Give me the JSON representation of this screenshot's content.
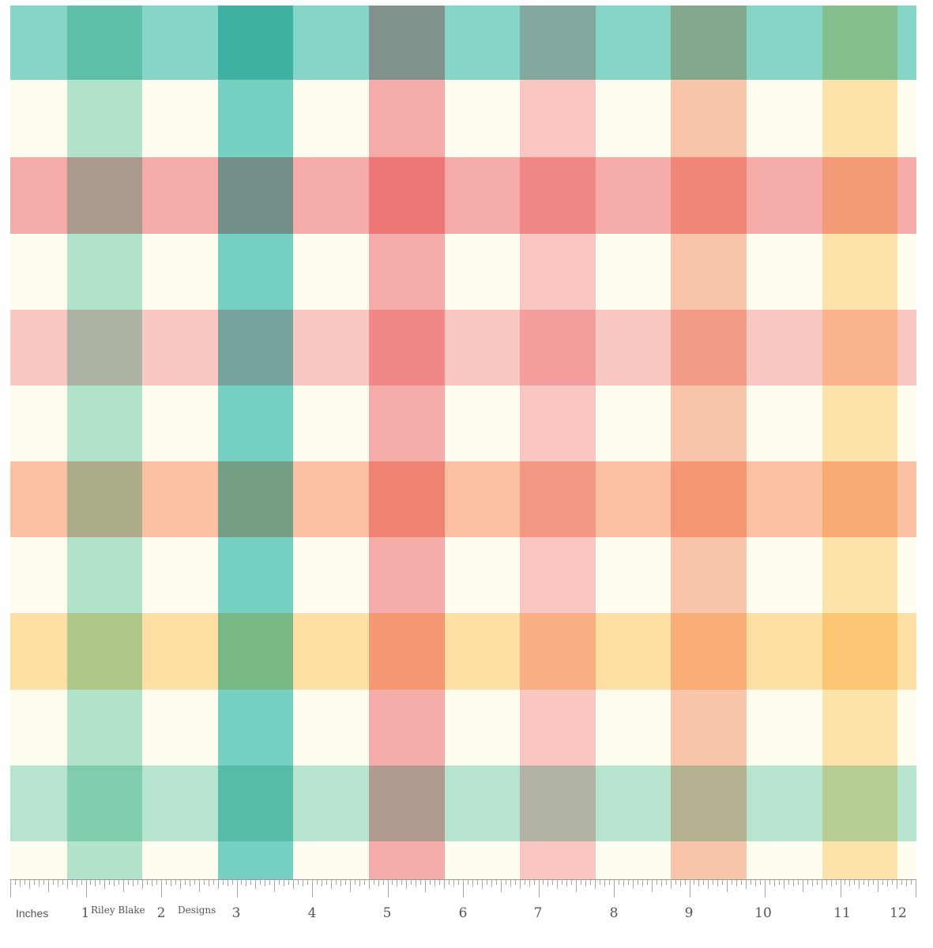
{
  "ruler": {
    "unit_label": "Inches",
    "numbers": [
      "1",
      "2",
      "3",
      "4",
      "5",
      "6",
      "7",
      "8",
      "9",
      "10",
      "11",
      "12"
    ],
    "brand_part1": "Riley Blake",
    "brand_part2": "Designs"
  },
  "fabric": {
    "background_color": "#fefdf0",
    "vertical_stripes": [
      {
        "color": "#7ed2bd",
        "opacity": 0.6
      },
      {
        "color": "#2dbcb5",
        "opacity": 0.65
      },
      {
        "color": "#f28b93",
        "opacity": 0.7
      },
      {
        "color": "#f7a3ac",
        "opacity": 0.6
      },
      {
        "color": "#f7a183",
        "opacity": 0.6
      },
      {
        "color": "#fdc96b",
        "opacity": 0.5
      }
    ],
    "horizontal_stripes": [
      {
        "color": "#2dbcb5",
        "opacity": 0.58
      },
      {
        "color": "#f28b93",
        "opacity": 0.7
      },
      {
        "color": "#f7a3ac",
        "opacity": 0.58
      },
      {
        "color": "#f7a183",
        "opacity": 0.65
      },
      {
        "color": "#fdc96b",
        "opacity": 0.55
      },
      {
        "color": "#7ed2bd",
        "opacity": 0.55
      }
    ]
  }
}
